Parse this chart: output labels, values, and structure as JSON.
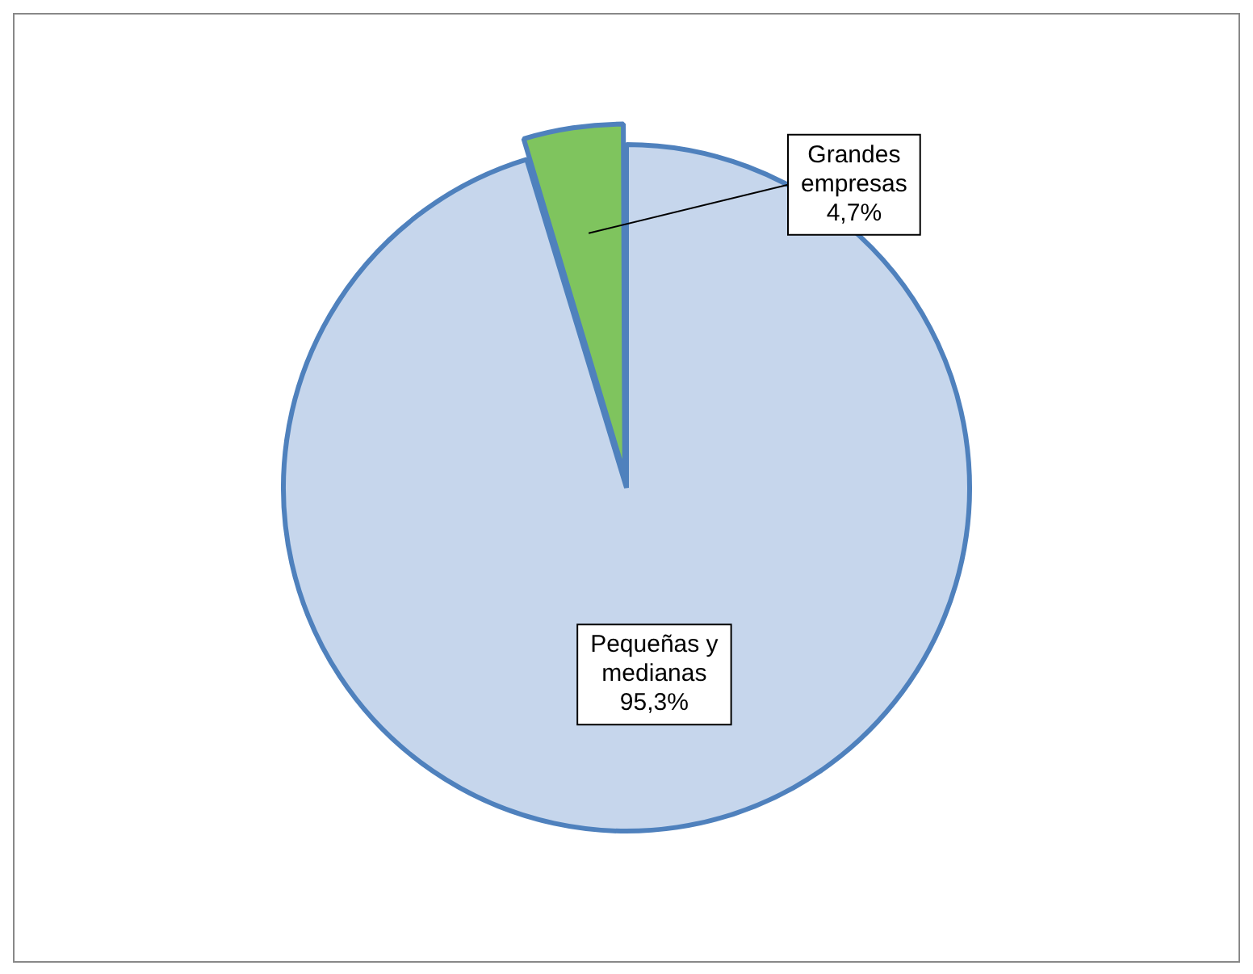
{
  "chart_data": {
    "type": "pie",
    "categories": [
      "Pequeñas y medianas",
      "Grandes empresas"
    ],
    "values": [
      95.3,
      4.7
    ],
    "colors": [
      "#c6d6ec",
      "#7fc45e"
    ],
    "value_labels": [
      "95,3%",
      "4,7%"
    ],
    "legend": false
  }
}
